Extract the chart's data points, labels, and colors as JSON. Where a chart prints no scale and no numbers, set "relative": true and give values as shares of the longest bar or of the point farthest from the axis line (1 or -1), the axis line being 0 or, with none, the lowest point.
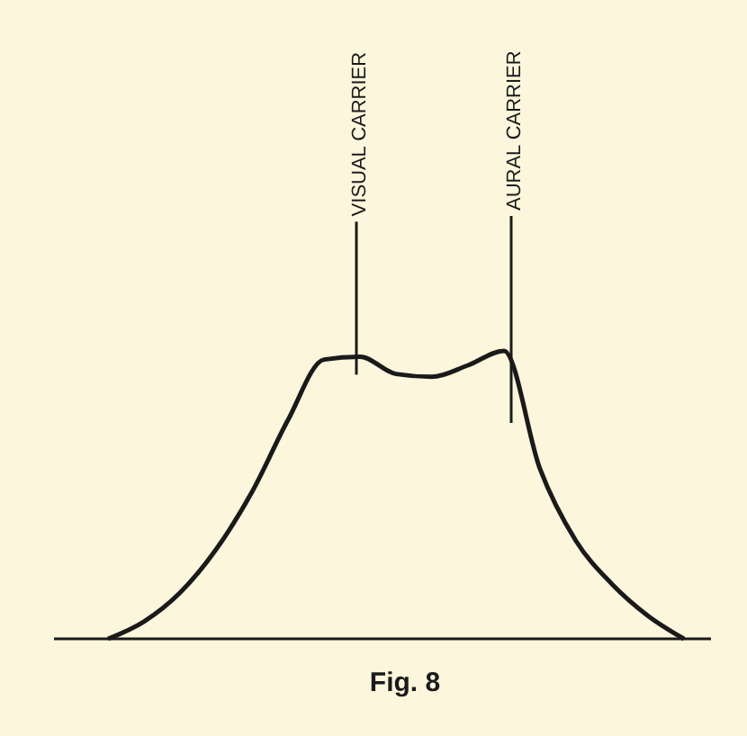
{
  "chart_data": {
    "type": "line",
    "title": "Fig. 8",
    "relative": true,
    "color": "#1a1a1a",
    "marker": "none",
    "line_style": "solid",
    "categories": [
      null,
      null,
      null,
      null,
      null,
      null,
      null,
      null,
      null,
      null,
      null,
      null,
      null,
      null,
      null,
      null,
      null
    ],
    "values": [
      0,
      0.06,
      0.16,
      0.31,
      0.51,
      0.76,
      0.97,
      0.98,
      0.92,
      0.91,
      0.95,
      1,
      0.59,
      0.34,
      0.19,
      0.08,
      0
    ],
    "annotations": [
      "VISUAL CARRIER",
      "AURAL CARRIER"
    ]
  }
}
